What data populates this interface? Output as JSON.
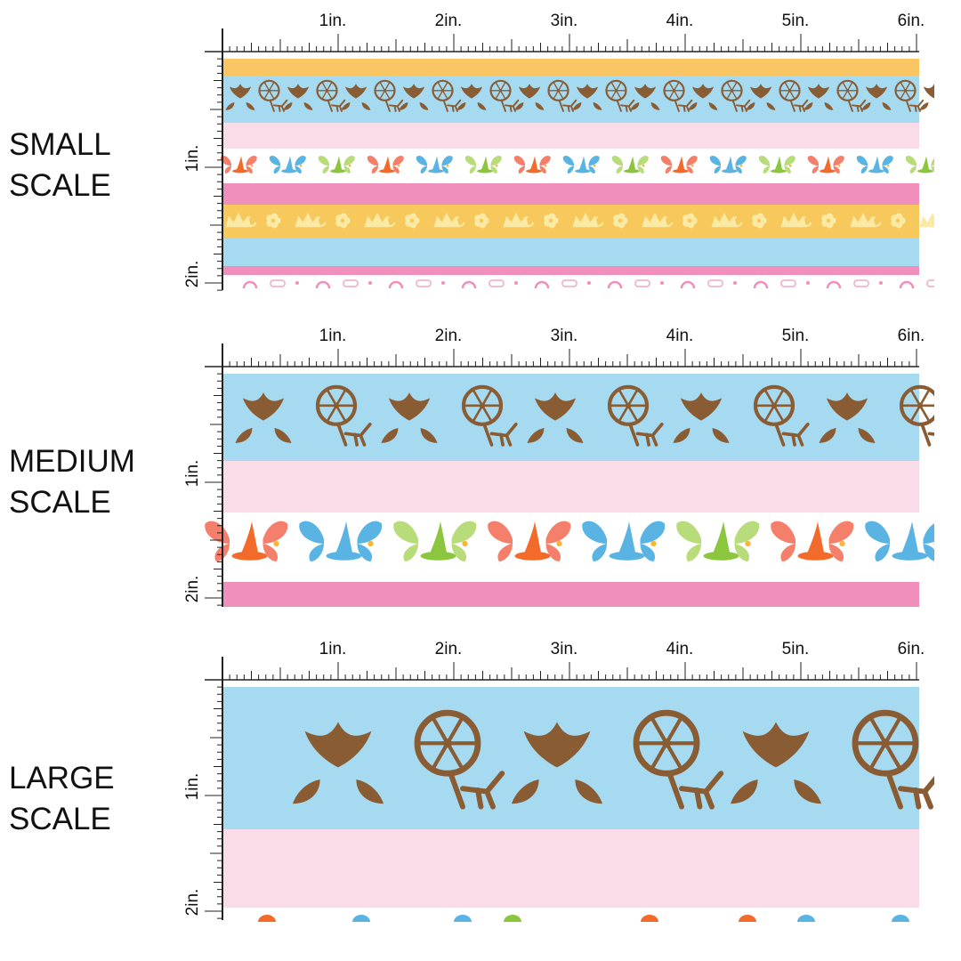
{
  "scales": [
    {
      "label_line1": "SMALL",
      "label_line2": "SCALE",
      "inch_labels": [
        "1in.",
        "2in.",
        "3in.",
        "4in.",
        "5in.",
        "6in."
      ],
      "vertical_labels": [
        "1in.",
        "2in."
      ],
      "stripes": [
        "yellow-band",
        "blue-spinning-wheel-band",
        "light-pink-band",
        "fairy-wings-hats-band",
        "pink-band",
        "yellow-crown-flower-band",
        "blue-band",
        "pink-thin-band",
        "pink-motif-band"
      ]
    },
    {
      "label_line1": "MEDIUM",
      "label_line2": "SCALE",
      "inch_labels": [
        "1in.",
        "2in.",
        "3in.",
        "4in.",
        "5in.",
        "6in."
      ],
      "vertical_labels": [
        "1in.",
        "2in."
      ],
      "stripes": [
        "blue-spinning-wheel-band",
        "light-pink-band",
        "fairy-wings-hats-band",
        "pink-band"
      ]
    },
    {
      "label_line1": "LARGE",
      "label_line2": "SCALE",
      "inch_labels": [
        "1in.",
        "2in.",
        "3in.",
        "4in.",
        "5in.",
        "6in."
      ],
      "vertical_labels": [
        "1in.",
        "2in."
      ],
      "stripes": [
        "blue-spinning-wheel-band",
        "light-pink-band",
        "fairy-wings-hats-band"
      ]
    }
  ],
  "colors": {
    "blue": "#a6daf1",
    "light_pink": "#f9dce7",
    "pink": "#f18fbc",
    "yellow": "#fac563",
    "gold": "#f7c95c",
    "brown": "#8a5c34",
    "orange": "#f26b2b",
    "coral": "#f47f6b",
    "sky": "#5ab4e3",
    "lime": "#8cc63f",
    "light_lime": "#b9dc7a",
    "ruler": "#222222"
  }
}
